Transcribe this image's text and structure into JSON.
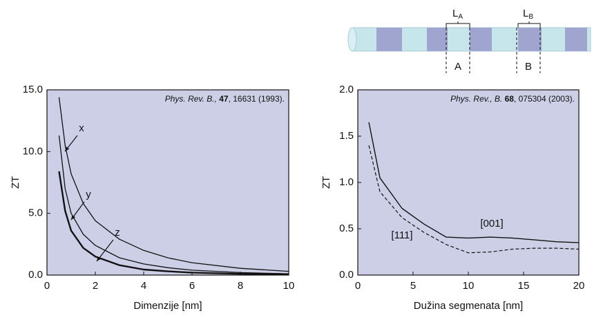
{
  "chart_data": [
    {
      "type": "line",
      "y_label": "ZT",
      "x_label": "Dimenzije [nm]",
      "citation": {
        "journal": "Phys. Rev. B.,",
        "volume": "47",
        "rest": ", 16631 (1993)."
      },
      "x": [
        0.5,
        0.75,
        1,
        1.5,
        2,
        3,
        4,
        5,
        6,
        8,
        10
      ],
      "series": [
        {
          "name": "x",
          "color": "#111111",
          "linewidth": 1.3,
          "dashed": false,
          "values": [
            14.4,
            10.5,
            8.2,
            5.8,
            4.4,
            2.9,
            2.0,
            1.4,
            1.0,
            0.55,
            0.3
          ]
        },
        {
          "name": "y",
          "color": "#111111",
          "linewidth": 1.3,
          "dashed": false,
          "values": [
            11.3,
            7.0,
            5.0,
            3.3,
            2.4,
            1.4,
            0.9,
            0.6,
            0.4,
            0.2,
            0.1
          ]
        },
        {
          "name": "z",
          "color": "#111111",
          "linewidth": 2.4,
          "dashed": false,
          "values": [
            8.4,
            5.2,
            3.6,
            2.2,
            1.5,
            0.8,
            0.45,
            0.3,
            0.2,
            0.1,
            0.05
          ]
        }
      ],
      "xlim": [
        0,
        10
      ],
      "xticks": [
        0,
        2,
        4,
        6,
        8,
        10
      ],
      "ylim": [
        0,
        15
      ],
      "yticks": [
        {
          "value": 0,
          "label": "0.0"
        },
        {
          "value": 5,
          "label": "5.0"
        },
        {
          "value": 10,
          "label": "10.0"
        },
        {
          "value": 15,
          "label": "15.0"
        }
      ]
    },
    {
      "type": "line",
      "y_label": "ZT",
      "x_label": "Dužina segmenata [nm]",
      "citation": {
        "journal": "Phys. Rev., B.",
        "volume": "68",
        "rest": ", 075304 (2003)."
      },
      "x": [
        1,
        2,
        4,
        6,
        8,
        10,
        12,
        14,
        16,
        18,
        20
      ],
      "series": [
        {
          "name": "[001]",
          "color": "#111111",
          "linewidth": 1.4,
          "dashed": false,
          "values": [
            1.65,
            1.05,
            0.72,
            0.55,
            0.41,
            0.4,
            0.41,
            0.4,
            0.38,
            0.36,
            0.35
          ]
        },
        {
          "name": "[111]",
          "color": "#111111",
          "linewidth": 1.2,
          "dashed": true,
          "values": [
            1.4,
            0.9,
            0.62,
            0.46,
            0.33,
            0.24,
            0.25,
            0.28,
            0.29,
            0.29,
            0.28
          ]
        }
      ],
      "xlim": [
        0,
        20
      ],
      "xticks": [
        0,
        5,
        10,
        15,
        20
      ],
      "ylim": [
        0,
        2
      ],
      "yticks": [
        {
          "value": 0,
          "label": "0.0"
        },
        0.5,
        {
          "value": 1,
          "label": "1.0"
        },
        1.5,
        {
          "value": 2,
          "label": "2.0"
        }
      ]
    }
  ],
  "diagram": {
    "segment_labels": [
      {
        "main": "L",
        "sub": "A"
      },
      {
        "main": "L",
        "sub": "B"
      }
    ],
    "region_labels": [
      "A",
      "B"
    ]
  }
}
